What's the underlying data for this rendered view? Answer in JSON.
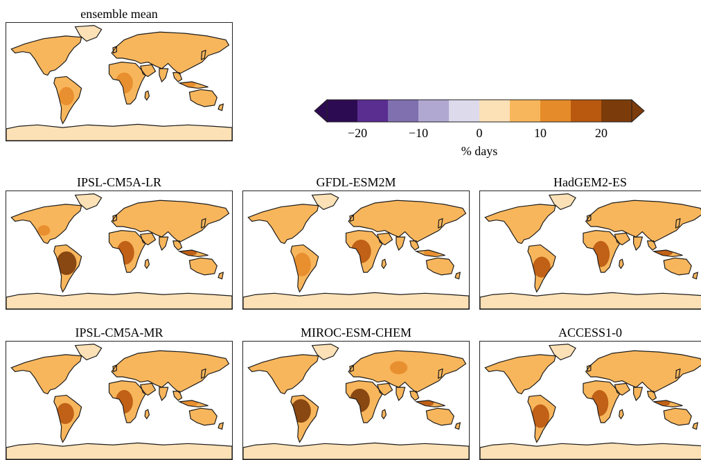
{
  "panels": [
    {
      "title": "ensemble mean",
      "variant": 0
    },
    {
      "title": "IPSL-CM5A-LR",
      "variant": 1
    },
    {
      "title": "GFDL-ESM2M",
      "variant": 2
    },
    {
      "title": "HadGEM2-ES",
      "variant": 3
    },
    {
      "title": "IPSL-CM5A-MR",
      "variant": 4
    },
    {
      "title": "MIROC-ESM-CHEM",
      "variant": 5
    },
    {
      "title": "ACCESS1-0",
      "variant": 6
    }
  ],
  "colorbar": {
    "label": "% days",
    "extend": "both",
    "bounds": [
      -25,
      -20,
      -15,
      -10,
      -5,
      0,
      5,
      10,
      15,
      20,
      25
    ],
    "ticks": [
      {
        "value": -20,
        "text": "−20"
      },
      {
        "value": -10,
        "text": "−10"
      },
      {
        "value": 0,
        "text": "0"
      },
      {
        "value": 10,
        "text": "10"
      },
      {
        "value": 20,
        "text": "20"
      }
    ],
    "colors": [
      "#2d0b52",
      "#5a2d91",
      "#8070b0",
      "#b1a8d2",
      "#dcdaeb",
      "#fde1b6",
      "#f8b65c",
      "#e58b2a",
      "#b9580f",
      "#7c3b0a"
    ],
    "under_color": "#2d0b52",
    "over_color": "#7c3b0a"
  },
  "map_colors": {
    "ocean": "#ffffff",
    "antarctica": "#fde1b6",
    "land_low": "#f8b65c",
    "land_mid": "#e58b2a",
    "land_high": "#b9580f",
    "land_max": "#7c3b0a",
    "coast": "#1a1a1a"
  }
}
